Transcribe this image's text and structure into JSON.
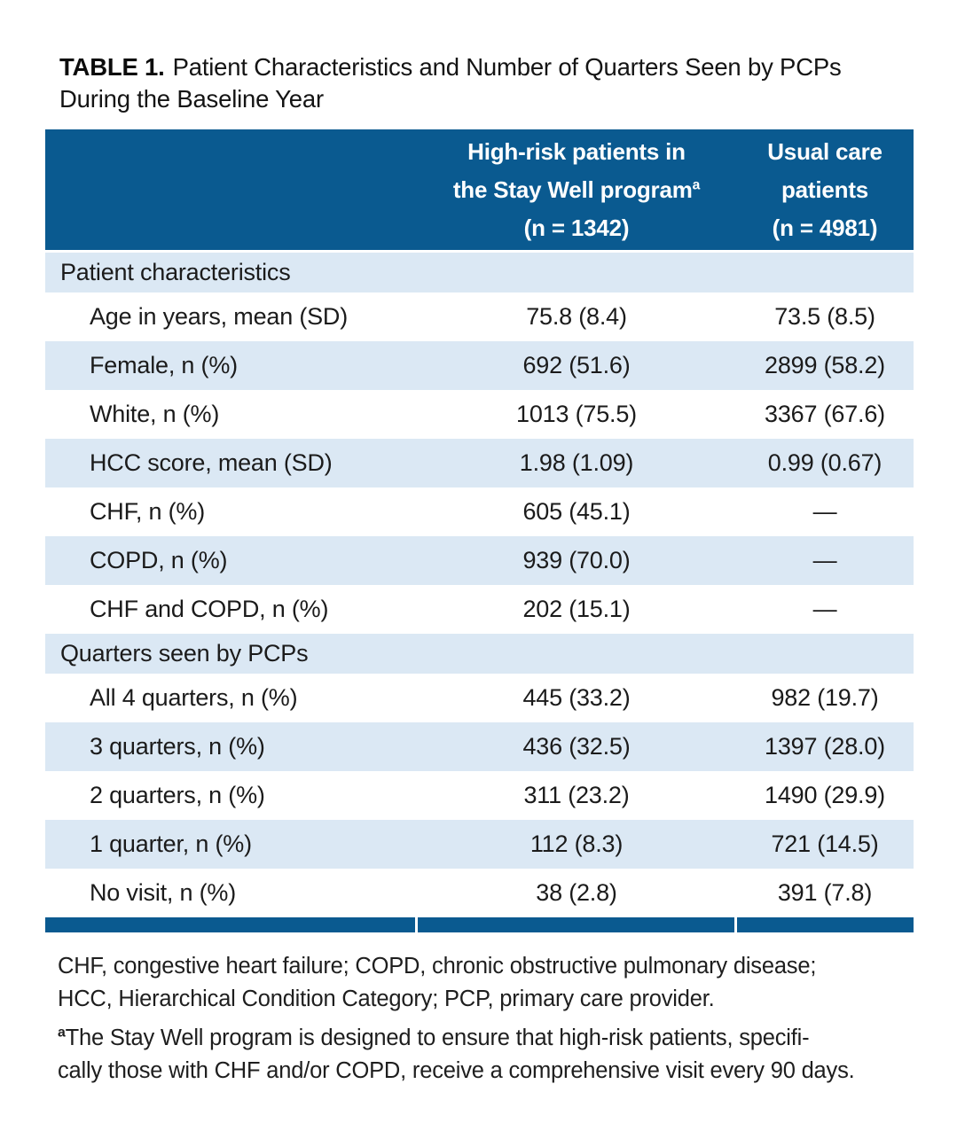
{
  "colors": {
    "header_blue": "#0a5a90",
    "row_blue": "#dbe8f4"
  },
  "title": {
    "label": "TABLE 1.",
    "line1_rest": "Patient Characteristics and Number of Quarters Seen by PCPs",
    "line2": "During the Baseline Year"
  },
  "header": {
    "col2": {
      "line1": "High-risk patients in",
      "line2": "the Stay Well program",
      "superscript": "a",
      "line3": "(n = 1342)"
    },
    "col3": {
      "line1": "Usual care",
      "line2": "patients",
      "line3": "(n = 4981)"
    }
  },
  "table": {
    "rows": [
      {
        "type": "section",
        "label": "Patient characteristics",
        "col2": "",
        "col3": "",
        "shaded": true
      },
      {
        "type": "data",
        "label": "Age in years, mean (SD)",
        "col2": "75.8 (8.4)",
        "col3": "73.5 (8.5)",
        "shaded": false
      },
      {
        "type": "data",
        "label": "Female, n (%)",
        "col2": "692 (51.6)",
        "col3": "2899 (58.2)",
        "shaded": true
      },
      {
        "type": "data",
        "label": "White, n (%)",
        "col2": "1013 (75.5)",
        "col3": "3367 (67.6)",
        "shaded": false
      },
      {
        "type": "data",
        "label": "HCC score, mean (SD)",
        "col2": "1.98 (1.09)",
        "col3": "0.99 (0.67)",
        "shaded": true
      },
      {
        "type": "data",
        "label": "CHF, n (%)",
        "col2": "605 (45.1)",
        "col3": "—",
        "shaded": false
      },
      {
        "type": "data",
        "label": "COPD, n (%)",
        "col2": "939 (70.0)",
        "col3": "—",
        "shaded": true
      },
      {
        "type": "data",
        "label": "CHF and COPD, n (%)",
        "col2": "202 (15.1)",
        "col3": "—",
        "shaded": false
      },
      {
        "type": "section",
        "label": "Quarters seen by PCPs",
        "col2": "",
        "col3": "",
        "shaded": true
      },
      {
        "type": "data",
        "label": "All 4 quarters, n (%)",
        "col2": "445 (33.2)",
        "col3": "982 (19.7)",
        "shaded": false
      },
      {
        "type": "data",
        "label": "3 quarters, n (%)",
        "col2": "436 (32.5)",
        "col3": "1397 (28.0)",
        "shaded": true
      },
      {
        "type": "data",
        "label": "2 quarters, n (%)",
        "col2": "311 (23.2)",
        "col3": "1490 (29.9)",
        "shaded": false
      },
      {
        "type": "data",
        "label": "1 quarter, n (%)",
        "col2": "112 (8.3)",
        "col3": "721 (14.5)",
        "shaded": true
      },
      {
        "type": "data",
        "label": "No visit, n (%)",
        "col2": "38 (2.8)",
        "col3": "391 (7.8)",
        "shaded": false
      }
    ]
  },
  "footnotes": {
    "abbrev_line1": "CHF, congestive heart failure; COPD, chronic obstructive pulmonary disease;",
    "abbrev_line2": "HCC, Hierarchical Condition Category; PCP, primary care provider.",
    "marker": "a",
    "note_line1": "The Stay Well program is designed to ensure that high-risk patients, specifi-",
    "note_line2": "cally those with CHF and/or COPD, receive a comprehensive visit every 90 days."
  }
}
